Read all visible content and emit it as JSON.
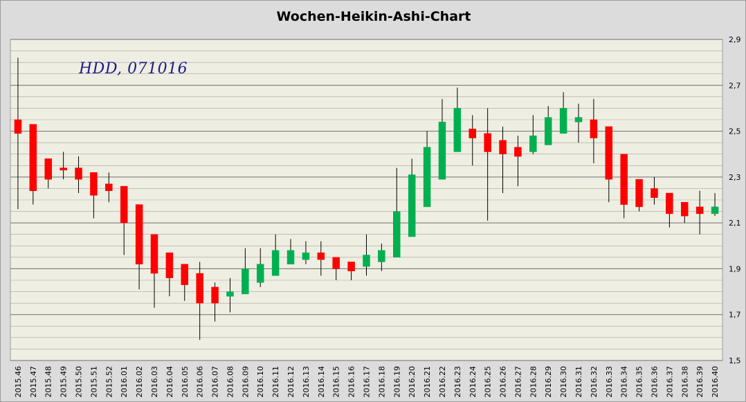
{
  "title": "Wochen-Heikin-Ashi-Chart",
  "watermark": "HDD, 071016",
  "colors": {
    "up": "#00b050",
    "down": "#ff0000",
    "plot_bg": "#efeee2",
    "grid": "#8c8c8c"
  },
  "chart_data": {
    "type": "candlestick",
    "title": "Wochen-Heikin-Ashi-Chart",
    "ylim": [
      1.5,
      2.9
    ],
    "yticks": [
      "1,5",
      "1,7",
      "1,9",
      "2,1",
      "2,3",
      "2,5",
      "2,7",
      "2,9"
    ],
    "ytick_values": [
      1.5,
      1.7,
      1.9,
      2.1,
      2.3,
      2.5,
      2.7,
      2.9
    ],
    "grid": true,
    "categories": [
      "2015.46",
      "2015.47",
      "2015.48",
      "2015.49",
      "2015.50",
      "2015.51",
      "2015.52",
      "2016.01",
      "2016.02",
      "2016.03",
      "2016.04",
      "2016.05",
      "2016.06",
      "2016.07",
      "2016.08",
      "2016.09",
      "2016.10",
      "2016.11",
      "2016.12",
      "2016.13",
      "2016.14",
      "2016.15",
      "2016.16",
      "2016.17",
      "2016.18",
      "2016.19",
      "2016.20",
      "2016.21",
      "2016.22",
      "2016.23",
      "2016.24",
      "2016.25",
      "2016.26",
      "2016.27",
      "2016.28",
      "2016.29",
      "2016.30",
      "2016.31",
      "2016.32",
      "2016.33",
      "2016.34",
      "2016.35",
      "2016.36",
      "2016.37",
      "2016.38",
      "2016.39",
      "2016.40"
    ],
    "open": [
      2.55,
      2.53,
      2.38,
      2.34,
      2.34,
      2.32,
      2.27,
      2.26,
      2.18,
      2.05,
      1.97,
      1.92,
      1.88,
      1.82,
      1.78,
      1.79,
      1.84,
      1.87,
      1.92,
      1.94,
      1.97,
      1.95,
      1.93,
      1.91,
      1.93,
      1.95,
      2.04,
      2.17,
      2.29,
      2.41,
      2.51,
      2.49,
      2.46,
      2.43,
      2.41,
      2.44,
      2.49,
      2.54,
      2.55,
      2.52,
      2.4,
      2.29,
      2.25,
      2.23,
      2.19,
      2.17,
      2.14
    ],
    "close": [
      2.49,
      2.24,
      2.29,
      2.33,
      2.29,
      2.22,
      2.24,
      2.1,
      1.92,
      1.88,
      1.86,
      1.83,
      1.75,
      1.75,
      1.8,
      1.9,
      1.92,
      1.98,
      1.98,
      1.97,
      1.94,
      1.9,
      1.89,
      1.96,
      1.98,
      2.15,
      2.31,
      2.43,
      2.54,
      2.6,
      2.47,
      2.41,
      2.4,
      2.39,
      2.48,
      2.56,
      2.6,
      2.56,
      2.47,
      2.29,
      2.18,
      2.17,
      2.21,
      2.14,
      2.13,
      2.14,
      2.17
    ],
    "high": [
      2.82,
      2.53,
      2.38,
      2.41,
      2.39,
      2.32,
      2.32,
      2.26,
      2.18,
      2.05,
      1.97,
      1.92,
      1.93,
      1.84,
      1.86,
      1.99,
      1.99,
      2.05,
      2.03,
      2.02,
      2.02,
      1.95,
      1.93,
      2.05,
      2.01,
      2.34,
      2.38,
      2.5,
      2.64,
      2.69,
      2.57,
      2.6,
      2.52,
      2.48,
      2.57,
      2.61,
      2.67,
      2.62,
      2.64,
      2.52,
      2.4,
      2.29,
      2.3,
      2.23,
      2.19,
      2.24,
      2.23
    ],
    "low": [
      2.16,
      2.18,
      2.25,
      2.29,
      2.23,
      2.12,
      2.19,
      1.96,
      1.81,
      1.73,
      1.78,
      1.76,
      1.59,
      1.67,
      1.71,
      1.79,
      1.82,
      1.87,
      1.92,
      1.92,
      1.87,
      1.85,
      1.85,
      1.87,
      1.89,
      1.95,
      2.04,
      2.17,
      2.29,
      2.41,
      2.35,
      2.11,
      2.23,
      2.26,
      2.4,
      2.44,
      2.49,
      2.45,
      2.36,
      2.19,
      2.12,
      2.15,
      2.18,
      2.08,
      2.1,
      2.05,
      2.13
    ]
  }
}
